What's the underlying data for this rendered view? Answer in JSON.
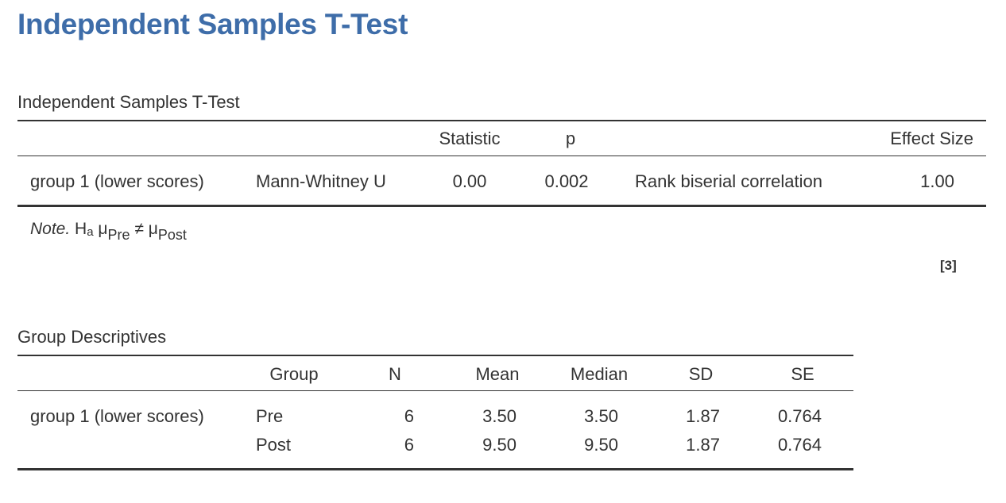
{
  "page_title": "Independent Samples T-Test",
  "ttest": {
    "title": "Independent Samples T-Test",
    "headers": {
      "statistic": "Statistic",
      "p": "p",
      "effect_size": "Effect Size"
    },
    "row": {
      "group": "group 1 (lower scores)",
      "test": "Mann-Whitney U",
      "statistic": "0.00",
      "p": "0.002",
      "effect_measure": "Rank biserial correlation",
      "effect_value": "1.00"
    },
    "note": {
      "label": "Note.",
      "h": "H",
      "h_sub": "a",
      "mu1": "μ",
      "mu1_sub": "Pre",
      "neq": "≠",
      "mu2": "μ",
      "mu2_sub": "Post"
    },
    "reference": "[3]"
  },
  "descriptives": {
    "title": "Group Descriptives",
    "headers": {
      "group": "Group",
      "n": "N",
      "mean": "Mean",
      "median": "Median",
      "sd": "SD",
      "se": "SE"
    },
    "variable": "group 1 (lower scores)",
    "rows": [
      {
        "group": "Pre",
        "n": "6",
        "mean": "3.50",
        "median": "3.50",
        "sd": "1.87",
        "se": "0.764"
      },
      {
        "group": "Post",
        "n": "6",
        "mean": "9.50",
        "median": "9.50",
        "sd": "1.87",
        "se": "0.764"
      }
    ]
  }
}
